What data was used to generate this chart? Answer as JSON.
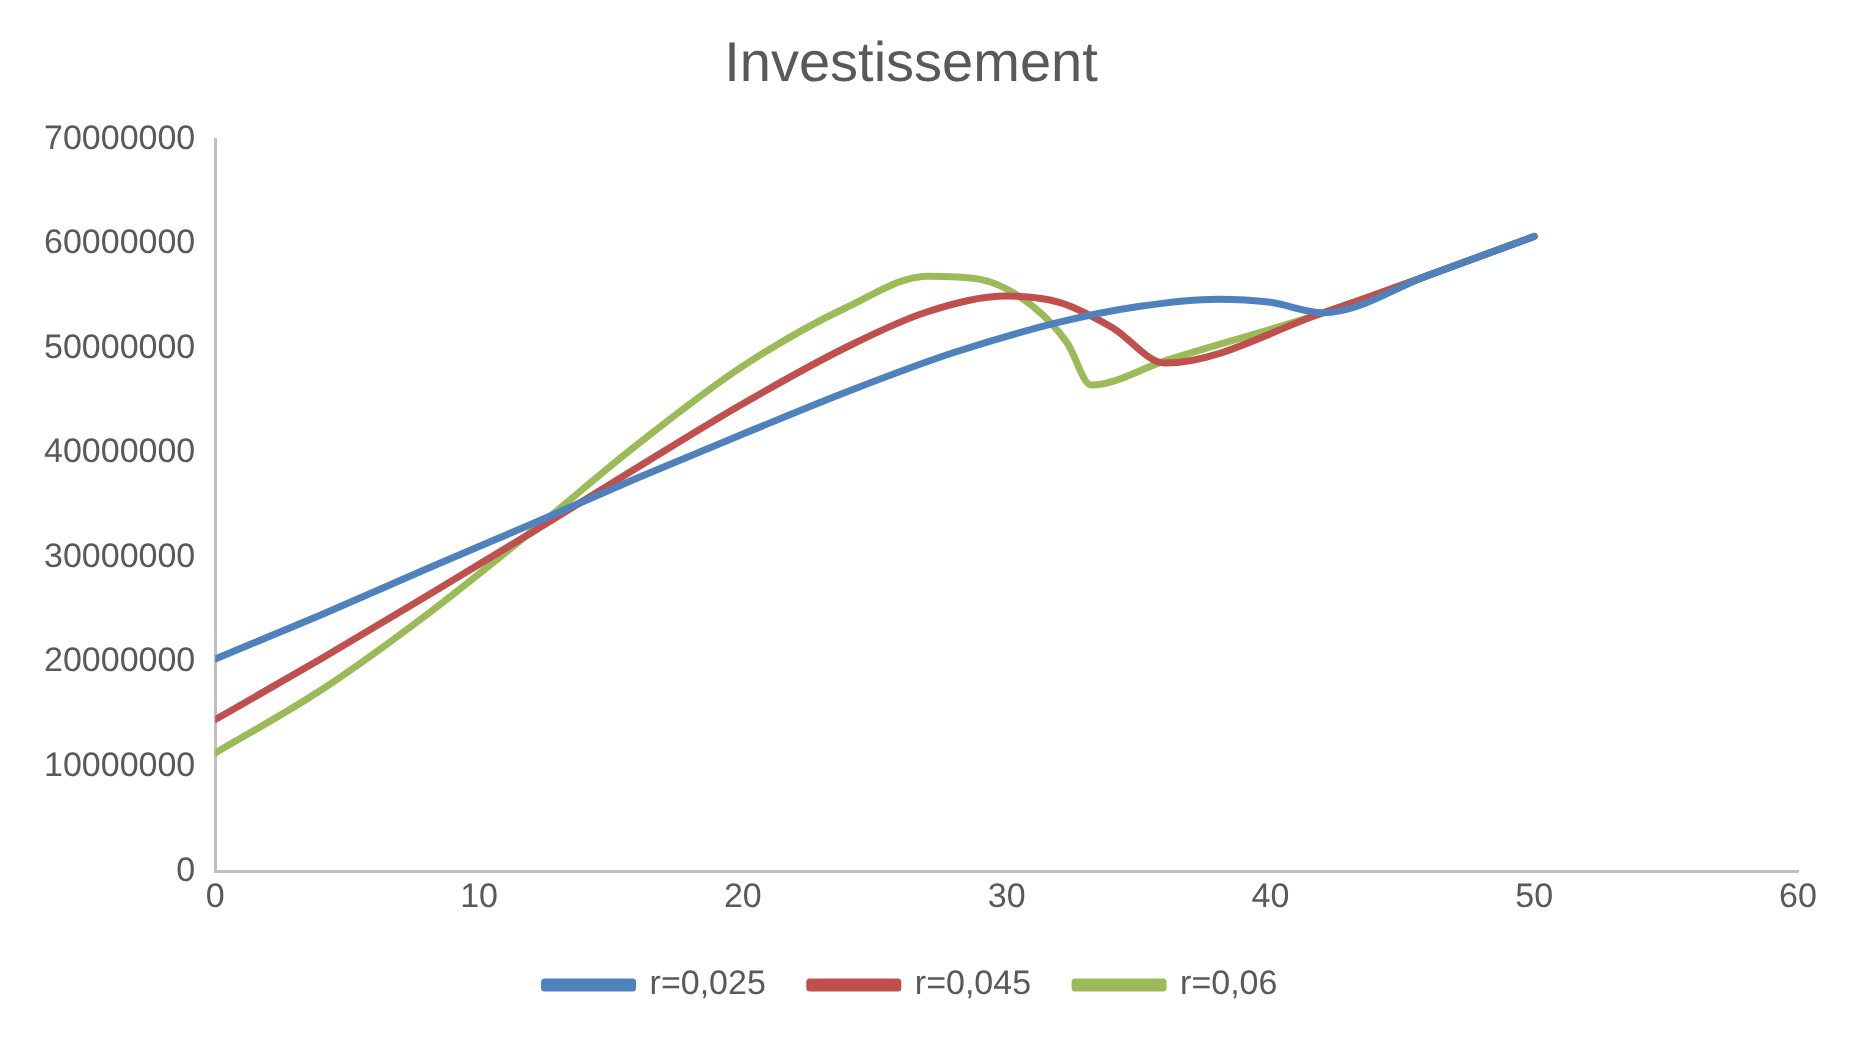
{
  "chart_data": {
    "type": "line",
    "title": "Investissement",
    "xlim": [
      0,
      60
    ],
    "xticks": [
      0,
      10,
      20,
      30,
      40,
      50,
      60
    ],
    "ylim": [
      0,
      70000000
    ],
    "yticks": [
      0,
      10000000,
      20000000,
      30000000,
      40000000,
      50000000,
      60000000,
      70000000
    ],
    "grid": false,
    "legend": "bottom",
    "marker": "none",
    "series": [
      {
        "name": "r=0,025",
        "color": "#4f81bd",
        "x": [
          0,
          4,
          8,
          12,
          16,
          20,
          24,
          28,
          32,
          35,
          38,
          40,
          42,
          46,
          50
        ],
        "values": [
          20300000,
          24500000,
          28900000,
          33200000,
          37600000,
          41800000,
          45900000,
          49600000,
          52500000,
          54000000,
          54700000,
          54400000,
          53400000,
          57000000,
          60700000
        ]
      },
      {
        "name": "r=0,045",
        "color": "#c0504d",
        "x": [
          0,
          4,
          8,
          12,
          16,
          20,
          24,
          27,
          30,
          32,
          34,
          36,
          42,
          50
        ],
        "values": [
          14500000,
          20300000,
          26300000,
          32400000,
          38600000,
          44700000,
          50200000,
          53500000,
          55000000,
          54400000,
          52000000,
          48600000,
          53400000,
          60700000
        ]
      },
      {
        "name": "r=0,06",
        "color": "#9bbb59",
        "x": [
          0,
          4,
          8,
          12,
          16,
          20,
          24,
          27,
          29,
          31,
          32.3,
          33.2,
          36,
          42,
          50
        ],
        "values": [
          11300000,
          17300000,
          24500000,
          32500000,
          40800000,
          48300000,
          54000000,
          56900000,
          56600000,
          54000000,
          50500000,
          46500000,
          48800000,
          53400000,
          60700000
        ]
      }
    ]
  }
}
